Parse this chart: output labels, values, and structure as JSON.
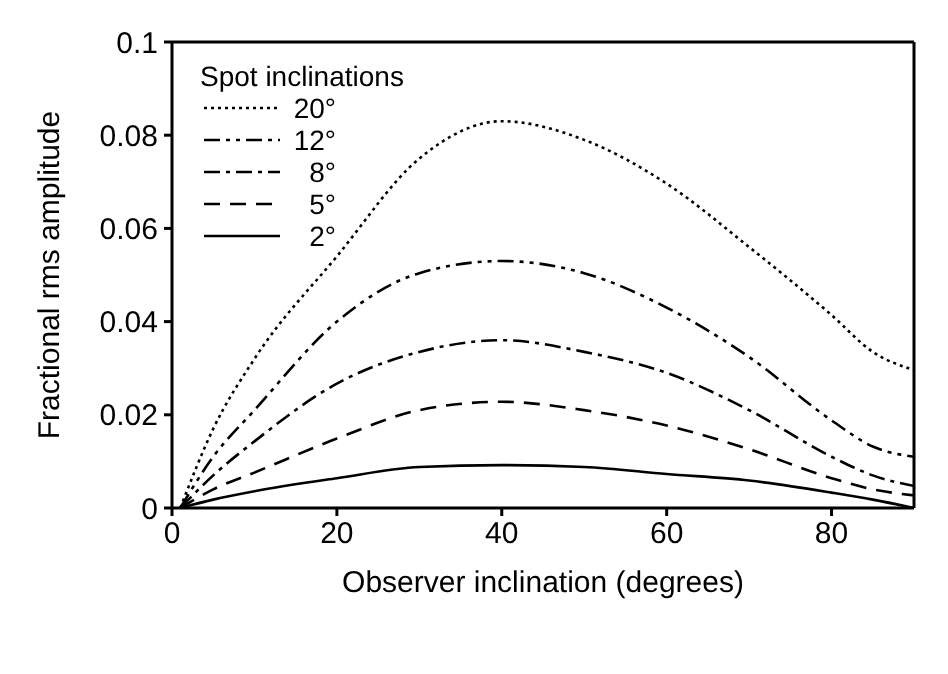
{
  "chart_data": {
    "type": "line",
    "xlabel": "Observer inclination (degrees)",
    "ylabel": "Fractional rms amplitude",
    "legend_title": "Spot inclinations",
    "x": [
      1,
      5,
      10,
      20,
      30,
      40,
      50,
      60,
      70,
      80,
      85,
      90
    ],
    "series": [
      {
        "name": "20°",
        "color": "#000000",
        "line_style": "dotted",
        "values": [
          0,
          0.017,
          0.032,
          0.054,
          0.075,
          0.083,
          0.079,
          0.0696,
          0.056,
          0.0414,
          0.0335,
          0.0296
        ]
      },
      {
        "name": "12°",
        "color": "#000000",
        "line_style": "dashdotdot",
        "values": [
          0,
          0.011,
          0.021,
          0.04,
          0.0504,
          0.053,
          0.0504,
          0.043,
          0.0324,
          0.0188,
          0.0132,
          0.011
        ]
      },
      {
        "name": "8°",
        "color": "#000000",
        "line_style": "dashdot",
        "values": [
          0,
          0.007,
          0.0143,
          0.0267,
          0.0335,
          0.036,
          0.0335,
          0.029,
          0.021,
          0.011,
          0.007,
          0.0047
        ]
      },
      {
        "name": "5°",
        "color": "#000000",
        "line_style": "dashed",
        "values": [
          0,
          0.004,
          0.0076,
          0.0149,
          0.021,
          0.0228,
          0.021,
          0.0177,
          0.0126,
          0.0064,
          0.004,
          0.0027
        ]
      },
      {
        "name": "2°",
        "color": "#000000",
        "line_style": "solid",
        "values": [
          0,
          0.0018,
          0.0036,
          0.0064,
          0.0088,
          0.0092,
          0.0088,
          0.0073,
          0.0059,
          0.0033,
          0.0018,
          0
        ]
      }
    ],
    "xlim": [
      0,
      90
    ],
    "xticks": [
      0,
      20,
      40,
      60,
      80
    ],
    "ylim": [
      0,
      0.1
    ],
    "yticks": [
      0,
      0.02,
      0.04,
      0.06,
      0.08,
      0.1
    ],
    "legend": "top left",
    "marker": "none",
    "grid": false
  }
}
